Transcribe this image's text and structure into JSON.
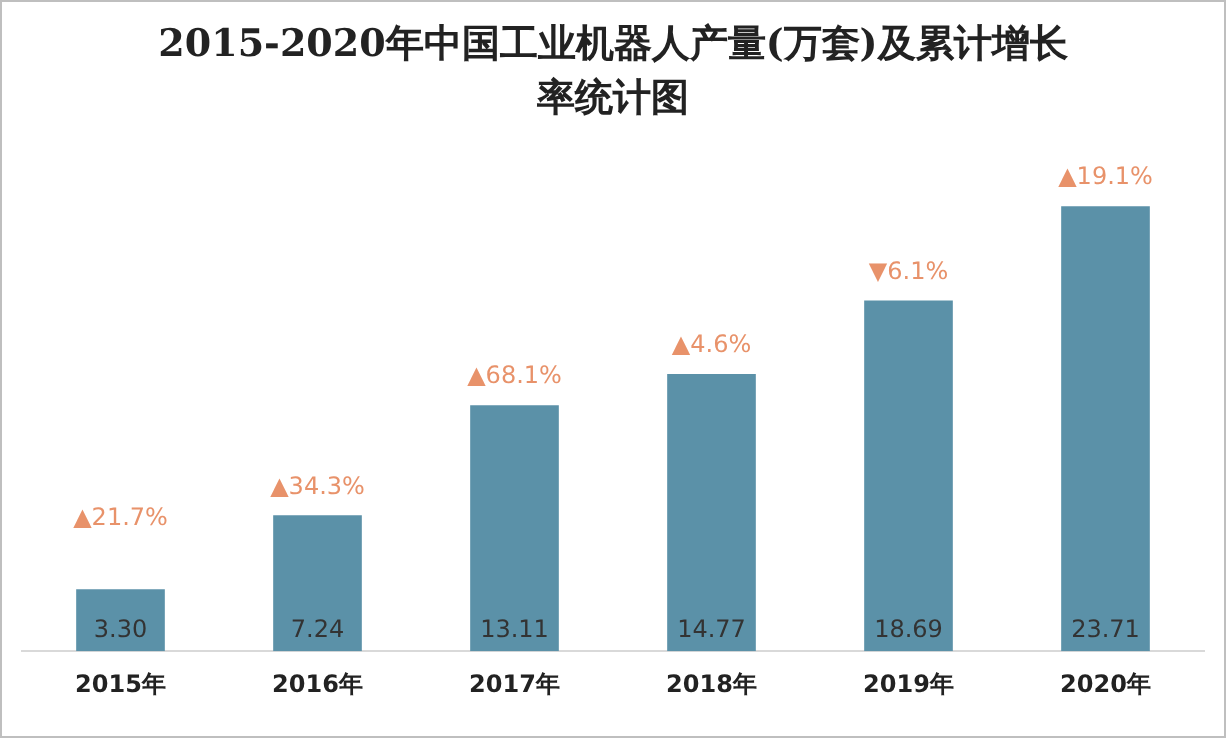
{
  "chart_data": {
    "type": "bar",
    "title": "2015-2020年中国工业机器人产量(万套)及累计增长率统计图",
    "categories": [
      "2015年",
      "2016年",
      "2017年",
      "2018年",
      "2019年",
      "2020年"
    ],
    "values": [
      3.3,
      7.24,
      13.11,
      14.77,
      18.69,
      23.71
    ],
    "value_labels": [
      "3.30",
      "7.24",
      "13.11",
      "14.77",
      "18.69",
      "23.71"
    ],
    "color": "#5b91a8",
    "annotations": [
      {
        "text": "▲21.7%",
        "x": "2015年",
        "y": 3.3
      },
      {
        "text": "▲34.3%",
        "x": "2016年",
        "y": 7.24
      },
      {
        "text": "▲68.1%",
        "x": "2017年",
        "y": 13.11
      },
      {
        "text": "▲4.6%",
        "x": "2018年",
        "y": 14.77
      },
      {
        "text": "▼6.1%",
        "x": "2019年",
        "y": 18.69
      },
      {
        "text": "▲19.1%",
        "x": "2020年",
        "y": 23.71
      }
    ],
    "grid": false,
    "legend": false
  }
}
